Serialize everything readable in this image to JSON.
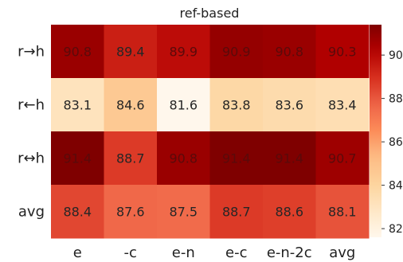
{
  "chart_data": {
    "type": "heatmap",
    "title": "ref-based",
    "xlabel": "",
    "ylabel": "",
    "x_categories": [
      "e",
      "-c",
      "e-n",
      "e-c",
      "e-n-2c",
      "avg"
    ],
    "y_categories": [
      "r→h",
      "r←h",
      "r↔h",
      "avg"
    ],
    "values": [
      [
        90.8,
        89.4,
        89.9,
        90.9,
        90.8,
        90.3
      ],
      [
        83.1,
        84.6,
        81.6,
        83.8,
        83.6,
        83.4
      ],
      [
        91.4,
        88.7,
        90.8,
        91.4,
        91.4,
        90.7
      ],
      [
        88.4,
        87.6,
        87.5,
        88.7,
        88.6,
        88.1
      ]
    ],
    "value_labels": [
      [
        "90.8",
        "89.4",
        "89.9",
        "90.9",
        "90.8",
        "90.3"
      ],
      [
        "83.1",
        "84.6",
        "81.6",
        "83.8",
        "83.6",
        "83.4"
      ],
      [
        "91.4",
        "88.7",
        "90.8",
        "91.4",
        "91.4",
        "90.7"
      ],
      [
        "88.4",
        "87.6",
        "87.5",
        "88.7",
        "88.6",
        "88.1"
      ]
    ],
    "colorbar": {
      "range": [
        81.6,
        91.4
      ],
      "ticks": [
        82,
        84,
        86,
        88,
        90
      ],
      "tick_labels": [
        "82",
        "84",
        "86",
        "88",
        "90"
      ],
      "colormap": "OrRd",
      "placement": "right"
    },
    "grid": false
  }
}
